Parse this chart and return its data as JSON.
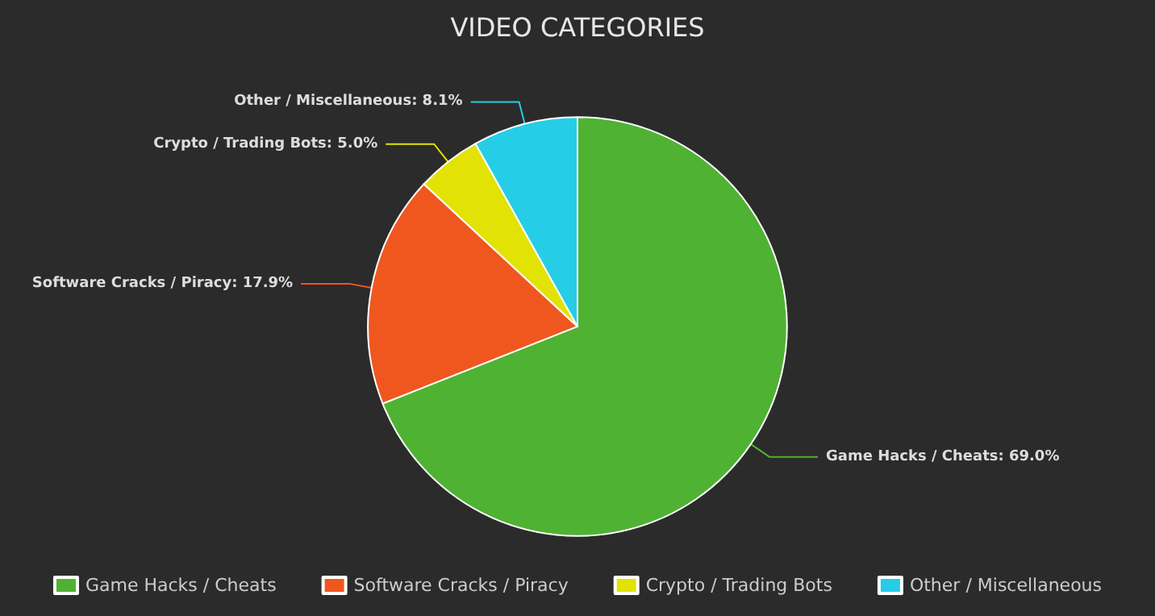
{
  "chart_data": {
    "type": "pie",
    "title": "VIDEO CATEGORIES",
    "categories": [
      "Game Hacks / Cheats",
      "Software Cracks / Piracy",
      "Crypto / Trading Bots",
      "Other / Miscellaneous"
    ],
    "values": [
      69.0,
      17.9,
      5.0,
      8.1
    ],
    "colors": [
      "#4fb233",
      "#f0571e",
      "#e2e205",
      "#26cde6"
    ],
    "value_labels": [
      "Game Hacks / Cheats: 69.0%",
      "Software Cracks / Piracy: 17.9%",
      "Crypto / Trading Bots: 5.0%",
      "Other / Miscellaneous: 8.1%"
    ],
    "legend": "bottom"
  }
}
